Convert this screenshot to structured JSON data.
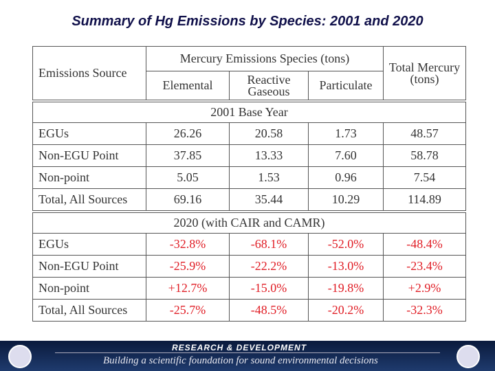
{
  "title": "Summary of Hg Emissions by Species: 2001 and 2020",
  "table": {
    "header": {
      "source": "Emissions Source",
      "species": "Mercury Emissions Species (tons)",
      "columns": [
        "Elemental",
        "Reactive Gaseous",
        "Particulate"
      ],
      "total": "Total Mercury (tons)"
    },
    "sections": [
      {
        "title": "2001 Base Year",
        "rows": [
          [
            "EGUs",
            "26.26",
            "20.58",
            "1.73",
            "48.57"
          ],
          [
            "Non-EGU Point",
            "37.85",
            "13.33",
            "7.60",
            "58.78"
          ],
          [
            "Non-point",
            "5.05",
            "1.53",
            "0.96",
            "7.54"
          ],
          [
            "Total, All Sources",
            "69.16",
            "35.44",
            "10.29",
            "114.89"
          ]
        ]
      },
      {
        "title": "2020 (with CAIR and CAMR)",
        "rows": [
          [
            "EGUs",
            "-32.8%",
            "-68.1%",
            "-52.0%",
            "-48.4%"
          ],
          [
            "Non-EGU Point",
            "-25.9%",
            "-22.2%",
            "-13.0%",
            "-23.4%"
          ],
          [
            "Non-point",
            "+12.7%",
            "-15.0%",
            "-19.8%",
            "+2.9%"
          ],
          [
            "Total, All Sources",
            "-25.7%",
            "-48.5%",
            "-20.2%",
            "-32.3%"
          ]
        ]
      }
    ]
  },
  "footer": {
    "banner": "RESEARCH & DEVELOPMENT",
    "tagline": "Building a scientific foundation for sound environmental decisions"
  }
}
